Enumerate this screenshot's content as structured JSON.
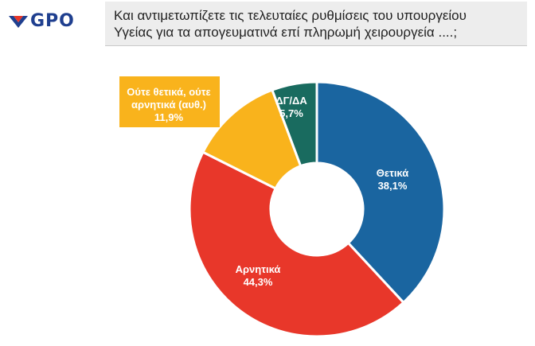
{
  "brand": {
    "logo_text": "GPO",
    "logo_icon": "gpo-logo-icon",
    "logo_color": "#1f3f8f"
  },
  "question": {
    "line1": "Και αντιμετωπίζετε τις τελευταίες ρυθμίσεις του υπουργείου",
    "line2": "Υγείας για τα απογευματινά επί πληρωμή χειρουργεία ....;"
  },
  "chart_data": {
    "type": "pie",
    "style": "donut",
    "slices": [
      {
        "label": "Θετικά",
        "value": 38.1,
        "value_text": "38,1%",
        "color": "#1a65a0",
        "label_color": "#ffffff"
      },
      {
        "label": "Αρνητικά",
        "value": 44.3,
        "value_text": "44,3%",
        "color": "#e8372a",
        "label_color": "#ffffff"
      },
      {
        "label_lines": [
          "Ούτε θετικά, ούτε",
          "αρνητικά (αυθ.)"
        ],
        "value": 11.9,
        "value_text": "11,9%",
        "color": "#f9b31c",
        "label_color": "#ffffff",
        "label_box": true
      },
      {
        "label_lines": [
          "ΔΓ/ΔΑ"
        ],
        "value": 5.7,
        "value_text": "5,7%",
        "color": "#196b5f",
        "label_color": "#ffffff"
      }
    ]
  }
}
